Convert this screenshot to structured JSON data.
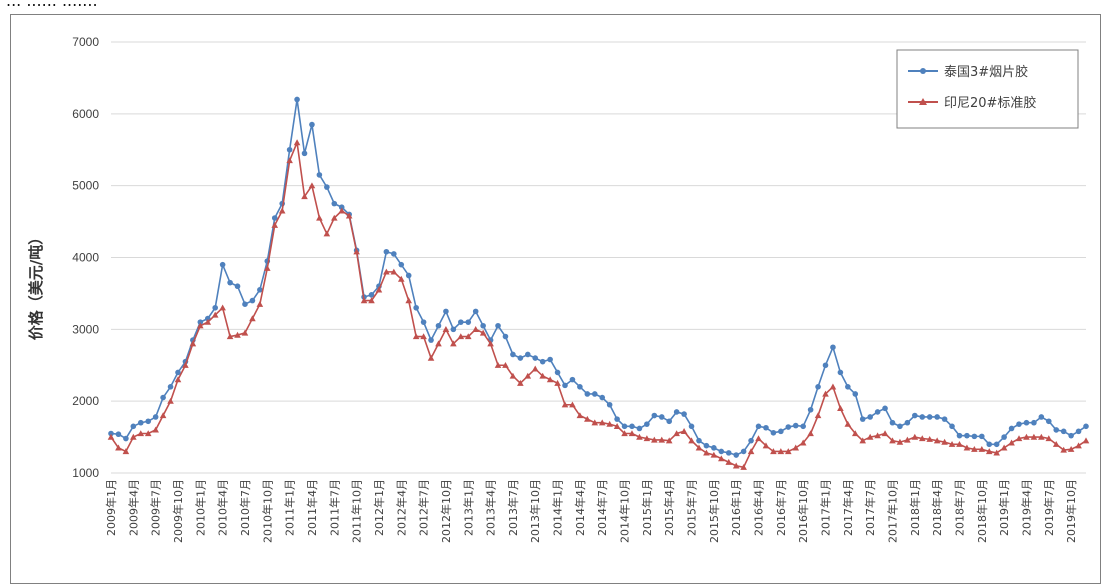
{
  "caption": "... ...... .......",
  "chart_data": {
    "type": "line",
    "title": "",
    "xlabel": "",
    "ylabel": "价格（美元/吨）",
    "ylim": [
      1000,
      7000
    ],
    "yticks": [
      1000,
      2000,
      3000,
      4000,
      5000,
      6000,
      7000
    ],
    "grid": true,
    "legend_position": "top-right",
    "x_tick_labels": [
      "2009年1月",
      "2009年4月",
      "2009年7月",
      "2009年10月",
      "2010年1月",
      "2010年4月",
      "2010年7月",
      "2010年10月",
      "2011年1月",
      "2011年4月",
      "2011年7月",
      "2011年10月",
      "2012年1月",
      "2012年4月",
      "2012年7月",
      "2012年10月",
      "2013年1月",
      "2013年4月",
      "2013年7月",
      "2013年10月",
      "2014年1月",
      "2014年4月",
      "2014年7月",
      "2014年10月",
      "2015年1月",
      "2015年4月",
      "2015年7月",
      "2015年10月",
      "2016年1月",
      "2016年4月",
      "2016年7月",
      "2016年10月",
      "2017年1月",
      "2017年4月",
      "2017年7月",
      "2017年10月",
      "2018年1月",
      "2018年4月",
      "2018年7月",
      "2018年10月",
      "2019年1月",
      "2019年4月",
      "2019年7月",
      "2019年10月"
    ],
    "x_months": [
      "2009-01",
      "2009-02",
      "2009-03",
      "2009-04",
      "2009-05",
      "2009-06",
      "2009-07",
      "2009-08",
      "2009-09",
      "2009-10",
      "2009-11",
      "2009-12",
      "2010-01",
      "2010-02",
      "2010-03",
      "2010-04",
      "2010-05",
      "2010-06",
      "2010-07",
      "2010-08",
      "2010-09",
      "2010-10",
      "2010-11",
      "2010-12",
      "2011-01",
      "2011-02",
      "2011-03",
      "2011-04",
      "2011-05",
      "2011-06",
      "2011-07",
      "2011-08",
      "2011-09",
      "2011-10",
      "2011-11",
      "2011-12",
      "2012-01",
      "2012-02",
      "2012-03",
      "2012-04",
      "2012-05",
      "2012-06",
      "2012-07",
      "2012-08",
      "2012-09",
      "2012-10",
      "2012-11",
      "2012-12",
      "2013-01",
      "2013-02",
      "2013-03",
      "2013-04",
      "2013-05",
      "2013-06",
      "2013-07",
      "2013-08",
      "2013-09",
      "2013-10",
      "2013-11",
      "2013-12",
      "2014-01",
      "2014-02",
      "2014-03",
      "2014-04",
      "2014-05",
      "2014-06",
      "2014-07",
      "2014-08",
      "2014-09",
      "2014-10",
      "2014-11",
      "2014-12",
      "2015-01",
      "2015-02",
      "2015-03",
      "2015-04",
      "2015-05",
      "2015-06",
      "2015-07",
      "2015-08",
      "2015-09",
      "2015-10",
      "2015-11",
      "2015-12",
      "2016-01",
      "2016-02",
      "2016-03",
      "2016-04",
      "2016-05",
      "2016-06",
      "2016-07",
      "2016-08",
      "2016-09",
      "2016-10",
      "2016-11",
      "2016-12",
      "2017-01",
      "2017-02",
      "2017-03",
      "2017-04",
      "2017-05",
      "2017-06",
      "2017-07",
      "2017-08",
      "2017-09",
      "2017-10",
      "2017-11",
      "2017-12",
      "2018-01",
      "2018-02",
      "2018-03",
      "2018-04",
      "2018-05",
      "2018-06",
      "2018-07",
      "2018-08",
      "2018-09",
      "2018-10",
      "2018-11",
      "2018-12",
      "2019-01",
      "2019-02",
      "2019-03",
      "2019-04",
      "2019-05",
      "2019-06",
      "2019-07",
      "2019-08",
      "2019-09",
      "2019-10",
      "2019-11",
      "2019-12"
    ],
    "series": [
      {
        "name": "泰国3#烟片胶",
        "color": "#4f81bd",
        "marker": "circle",
        "values": [
          1550,
          1540,
          1480,
          1650,
          1700,
          1720,
          1780,
          2050,
          2200,
          2400,
          2550,
          2850,
          3100,
          3150,
          3300,
          3900,
          3650,
          3600,
          3350,
          3400,
          3550,
          3950,
          4550,
          4750,
          5500,
          6200,
          5450,
          5850,
          5150,
          4980,
          4750,
          4700,
          4600,
          4100,
          3450,
          3480,
          3600,
          4080,
          4050,
          3900,
          3750,
          3300,
          3100,
          2850,
          3050,
          3250,
          3000,
          3100,
          3100,
          3250,
          3050,
          2850,
          3050,
          2900,
          2650,
          2600,
          2650,
          2600,
          2550,
          2580,
          2400,
          2220,
          2300,
          2200,
          2100,
          2100,
          2050,
          1950,
          1750,
          1650,
          1650,
          1620,
          1680,
          1800,
          1780,
          1720,
          1850,
          1820,
          1650,
          1450,
          1380,
          1350,
          1300,
          1280,
          1250,
          1300,
          1450,
          1650,
          1630,
          1560,
          1580,
          1640,
          1660,
          1650,
          1880,
          2200,
          2500,
          2750,
          2400,
          2200,
          2100,
          1750,
          1780,
          1850,
          1900,
          1700,
          1650,
          1700,
          1800,
          1780,
          1780,
          1780,
          1750,
          1650,
          1520,
          1520,
          1510,
          1510,
          1400,
          1400,
          1500,
          1620,
          1680,
          1700,
          1700,
          1780,
          1720,
          1600,
          1580,
          1520,
          1580,
          1650
        ]
      },
      {
        "name": "印尼20#标准胶",
        "color": "#c0504d",
        "marker": "triangle",
        "values": [
          1500,
          1350,
          1300,
          1500,
          1550,
          1550,
          1600,
          1800,
          2000,
          2300,
          2500,
          2800,
          3050,
          3100,
          3200,
          3300,
          2900,
          2920,
          2950,
          3150,
          3350,
          3850,
          4450,
          4650,
          5350,
          5600,
          4850,
          5000,
          4550,
          4330,
          4550,
          4650,
          4580,
          4080,
          3400,
          3400,
          3550,
          3800,
          3800,
          3700,
          3400,
          2900,
          2900,
          2600,
          2800,
          3000,
          2800,
          2900,
          2900,
          3000,
          2950,
          2800,
          2500,
          2500,
          2350,
          2250,
          2350,
          2450,
          2350,
          2300,
          2250,
          1950,
          1950,
          1800,
          1750,
          1700,
          1700,
          1680,
          1650,
          1550,
          1550,
          1500,
          1480,
          1460,
          1460,
          1450,
          1550,
          1580,
          1450,
          1350,
          1280,
          1250,
          1200,
          1150,
          1100,
          1080,
          1300,
          1480,
          1380,
          1300,
          1300,
          1300,
          1350,
          1420,
          1550,
          1800,
          2100,
          2200,
          1900,
          1680,
          1550,
          1450,
          1500,
          1520,
          1550,
          1450,
          1430,
          1460,
          1500,
          1480,
          1470,
          1450,
          1430,
          1400,
          1400,
          1350,
          1330,
          1330,
          1300,
          1280,
          1350,
          1420,
          1480,
          1500,
          1500,
          1500,
          1480,
          1400,
          1320,
          1330,
          1380,
          1450
        ]
      }
    ]
  }
}
